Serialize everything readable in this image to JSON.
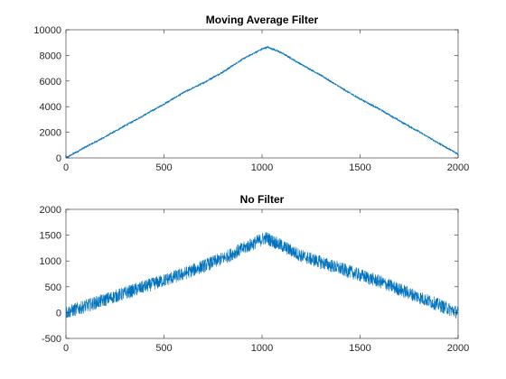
{
  "chart_data": [
    {
      "type": "line",
      "title": "Moving Average Filter",
      "xlabel": "",
      "ylabel": "",
      "xlim": [
        0,
        2000
      ],
      "ylim": [
        0,
        10000
      ],
      "xticks": [
        0,
        500,
        1000,
        1500,
        2000
      ],
      "yticks": [
        0,
        2000,
        4000,
        6000,
        8000,
        10000
      ],
      "grid": false,
      "line_color": "#0072BD",
      "series": [
        {
          "x": [
            0,
            100,
            200,
            300,
            400,
            500,
            600,
            700,
            800,
            900,
            1000,
            1030,
            1100,
            1200,
            1300,
            1400,
            1500,
            1600,
            1700,
            1800,
            1900,
            2000
          ],
          "values": [
            0,
            850,
            1650,
            2500,
            3350,
            4200,
            5100,
            5850,
            6700,
            7700,
            8500,
            8650,
            8200,
            7300,
            6450,
            5500,
            4600,
            3800,
            2900,
            2050,
            1150,
            300
          ],
          "noise_amplitude": 60
        }
      ]
    },
    {
      "type": "line",
      "title": "No Filter",
      "xlabel": "",
      "ylabel": "",
      "xlim": [
        0,
        2000
      ],
      "ylim": [
        -500,
        2000
      ],
      "xticks": [
        0,
        500,
        1000,
        1500,
        2000
      ],
      "yticks": [
        -500,
        0,
        500,
        1000,
        1500,
        2000
      ],
      "grid": false,
      "line_color": "#0072BD",
      "series": [
        {
          "x": [
            0,
            200,
            400,
            600,
            800,
            1000,
            1020,
            1200,
            1400,
            1600,
            1800,
            2000
          ],
          "values": [
            0,
            250,
            500,
            750,
            1050,
            1420,
            1450,
            1100,
            850,
            600,
            300,
            0
          ],
          "noise_amplitude": 130
        }
      ]
    }
  ]
}
